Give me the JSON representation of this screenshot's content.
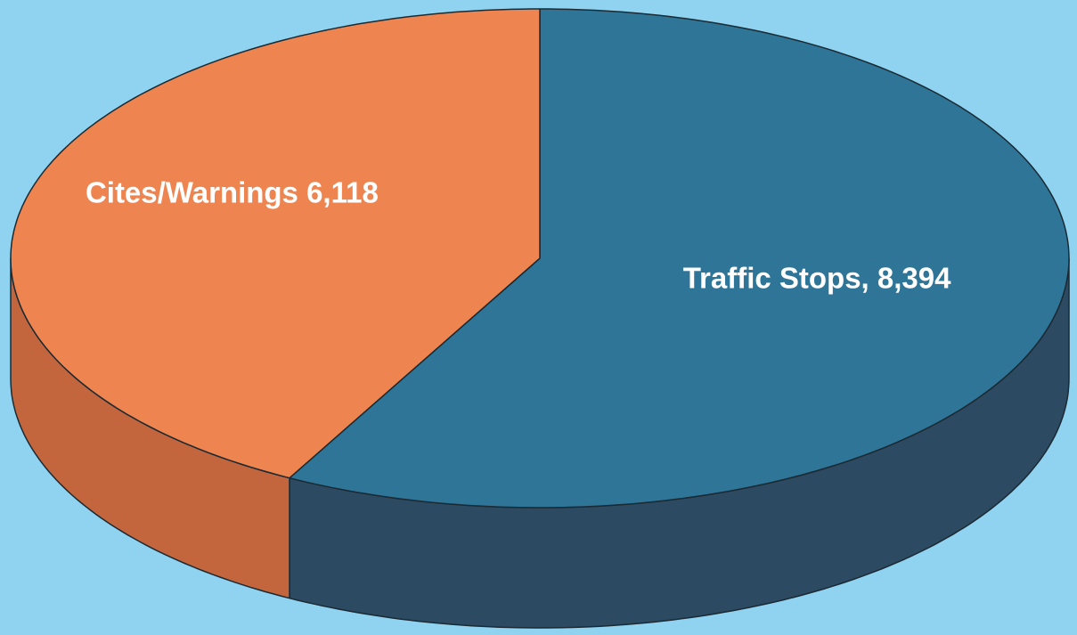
{
  "chart_data": {
    "type": "pie3d",
    "categories": [
      "Traffic Stops",
      "Cites/Warnings"
    ],
    "values": [
      8394,
      6118
    ],
    "data_labels": [
      "Traffic Stops, 8,394",
      "Cites/Warnings 6,118"
    ],
    "colors": [
      "#2e7597",
      "#ee8550"
    ],
    "side_colors": [
      "#2c4a62",
      "#c4663d"
    ]
  }
}
